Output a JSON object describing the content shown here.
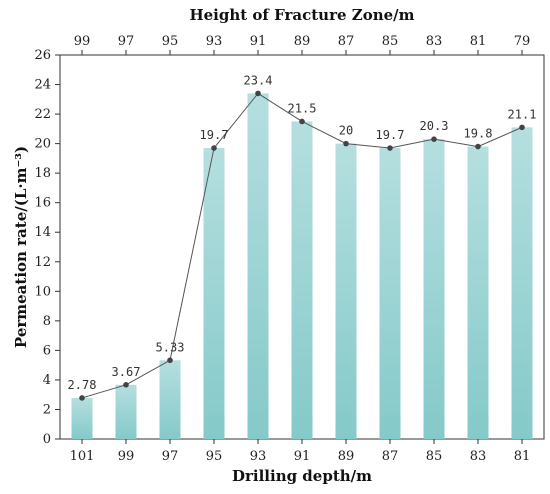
{
  "chart_data": {
    "type": "bar",
    "top_axis_title": "Height of Fracture Zone/m",
    "top_categories": [
      "99",
      "97",
      "95",
      "93",
      "91",
      "89",
      "87",
      "85",
      "83",
      "81",
      "79"
    ],
    "xlabel": "Drilling depth/m",
    "ylabel": "Permeation rate/(L·m⁻³)",
    "categories": [
      "101",
      "99",
      "97",
      "95",
      "93",
      "91",
      "89",
      "87",
      "85",
      "83",
      "81"
    ],
    "values": [
      2.78,
      3.67,
      5.33,
      19.7,
      23.4,
      21.5,
      20,
      19.7,
      20.3,
      19.8,
      21.1
    ],
    "value_labels": [
      "2.78",
      "3.67",
      "5.33",
      "19.7",
      "23.4",
      "21.5",
      "20",
      "19.7",
      "20.3",
      "19.8",
      "21.1"
    ],
    "ylim": [
      0,
      26
    ],
    "yticks": [
      "0",
      "2",
      "4",
      "6",
      "8",
      "10",
      "12",
      "14",
      "16",
      "18",
      "20",
      "22",
      "24",
      "26"
    ],
    "grid": false,
    "bar_color_top": "#b5dfdf",
    "bar_color_bottom": "#85c9c9",
    "line_color": "#555555",
    "point_color": "#444444"
  }
}
